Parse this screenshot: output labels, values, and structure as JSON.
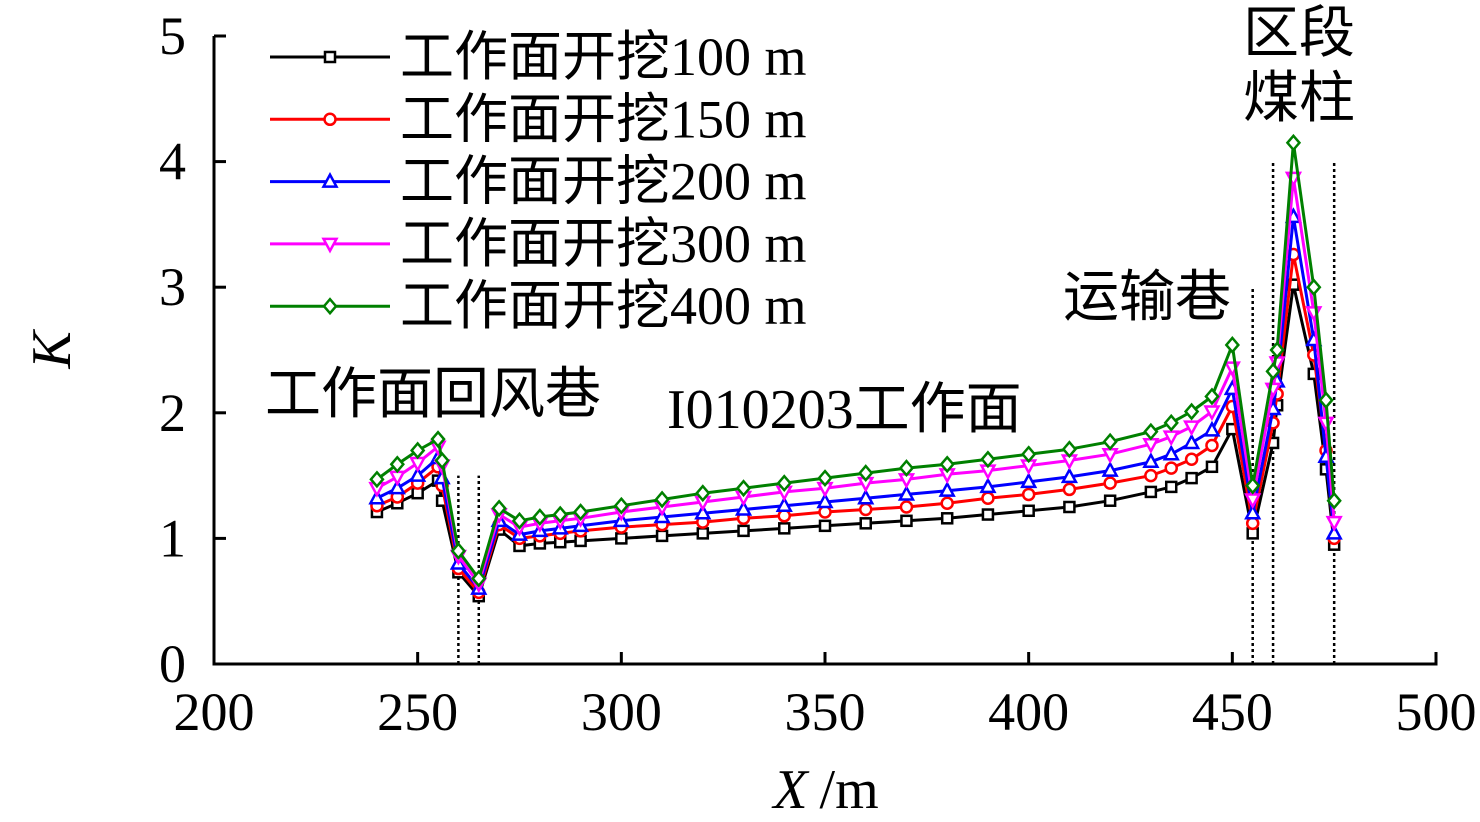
{
  "chart_data": {
    "type": "line",
    "title": "",
    "ylabel": "K",
    "xlabel_variable": "X",
    "xlabel_unit": "/m",
    "xlim": [
      200,
      500
    ],
    "ylim": [
      0,
      5
    ],
    "xticks": [
      "200",
      "250",
      "300",
      "350",
      "400",
      "450",
      "500"
    ],
    "xtick_values": [
      200,
      250,
      300,
      350,
      400,
      450,
      500
    ],
    "yticks": [
      "0",
      "1",
      "2",
      "3",
      "4",
      "5"
    ],
    "ytick_values": [
      0,
      1,
      2,
      3,
      4,
      5
    ],
    "grid": false,
    "legend_placement": "top-left",
    "x": [
      240,
      245,
      250,
      255,
      256,
      260,
      265,
      270,
      275,
      280,
      285,
      290,
      300,
      310,
      320,
      330,
      340,
      350,
      360,
      370,
      380,
      390,
      400,
      410,
      420,
      430,
      435,
      440,
      445,
      450,
      455,
      460,
      461,
      465,
      470,
      473,
      475
    ],
    "series": [
      {
        "name": "工作面开挖100 m",
        "color": "#000000",
        "marker": "square",
        "values": [
          1.21,
          1.28,
          1.36,
          1.46,
          1.3,
          0.73,
          0.54,
          1.07,
          0.94,
          0.96,
          0.97,
          0.98,
          1.0,
          1.02,
          1.04,
          1.06,
          1.08,
          1.1,
          1.12,
          1.14,
          1.16,
          1.19,
          1.22,
          1.25,
          1.3,
          1.37,
          1.41,
          1.48,
          1.57,
          1.87,
          1.04,
          1.76,
          2.06,
          3.02,
          2.31,
          1.55,
          0.95
        ]
      },
      {
        "name": "工作面开挖150 m",
        "color": "#ff0000",
        "marker": "circle",
        "values": [
          1.26,
          1.33,
          1.44,
          1.57,
          1.42,
          0.76,
          0.57,
          1.11,
          1.0,
          1.02,
          1.04,
          1.06,
          1.09,
          1.11,
          1.13,
          1.16,
          1.18,
          1.21,
          1.23,
          1.25,
          1.28,
          1.32,
          1.35,
          1.39,
          1.44,
          1.5,
          1.56,
          1.63,
          1.74,
          2.05,
          1.12,
          1.92,
          2.15,
          3.26,
          2.46,
          1.7,
          1.0
        ]
      },
      {
        "name": "工作面开挖200 m",
        "color": "#0000ff",
        "marker": "triangle-up",
        "values": [
          1.32,
          1.4,
          1.5,
          1.64,
          1.48,
          0.8,
          0.6,
          1.14,
          1.03,
          1.06,
          1.08,
          1.1,
          1.14,
          1.17,
          1.2,
          1.23,
          1.26,
          1.29,
          1.32,
          1.35,
          1.38,
          1.41,
          1.45,
          1.49,
          1.54,
          1.61,
          1.67,
          1.76,
          1.86,
          2.19,
          1.2,
          2.03,
          2.25,
          3.56,
          2.58,
          1.65,
          1.04
        ]
      },
      {
        "name": "工作面开挖300 m",
        "color": "#ff00ff",
        "marker": "triangle-down",
        "values": [
          1.4,
          1.49,
          1.6,
          1.73,
          1.58,
          0.86,
          0.64,
          1.19,
          1.09,
          1.12,
          1.14,
          1.16,
          1.21,
          1.25,
          1.29,
          1.33,
          1.37,
          1.4,
          1.44,
          1.47,
          1.51,
          1.54,
          1.58,
          1.62,
          1.67,
          1.75,
          1.81,
          1.89,
          2.01,
          2.36,
          1.31,
          2.19,
          2.4,
          3.87,
          2.8,
          1.92,
          1.13
        ]
      },
      {
        "name": "工作面开挖400 m",
        "color": "#008000",
        "marker": "diamond",
        "values": [
          1.47,
          1.59,
          1.7,
          1.79,
          1.62,
          0.9,
          0.68,
          1.24,
          1.14,
          1.17,
          1.19,
          1.21,
          1.26,
          1.31,
          1.36,
          1.4,
          1.44,
          1.48,
          1.52,
          1.56,
          1.59,
          1.63,
          1.67,
          1.71,
          1.77,
          1.85,
          1.92,
          2.01,
          2.13,
          2.54,
          1.42,
          2.33,
          2.5,
          4.15,
          3.0,
          2.1,
          1.3
        ]
      }
    ],
    "reference_lines": [
      {
        "x": 260,
        "y_top": 1.5
      },
      {
        "x": 265,
        "y_top": 1.5
      },
      {
        "x": 455,
        "y_top": 3.0
      },
      {
        "x": 460,
        "y_top": 4.0
      },
      {
        "x": 475,
        "y_top": 4.0
      }
    ],
    "annotations": {
      "return_airway": "工作面回风巷",
      "working_face": "I010203工作面",
      "haulage_roadway": "运输巷",
      "pillar_line1": "区段",
      "pillar_line2": "煤柱"
    }
  }
}
